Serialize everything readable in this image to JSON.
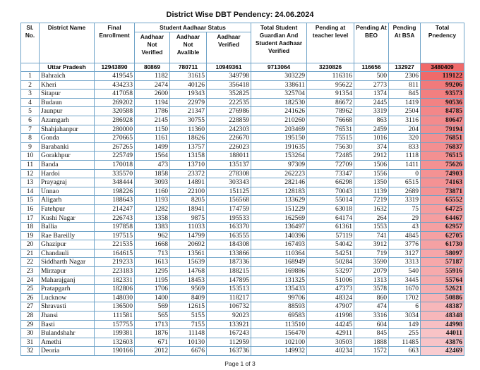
{
  "title": "District Wise DBT Pendency: 24.06.2024",
  "headers": {
    "sl": "Sl. No.",
    "district": "District Name",
    "enrollment": "Final Enrollment",
    "aadhaar_status": "Student Aadhaar Status",
    "not_verified": "Aadhaar Not Verified",
    "not_available": "Aadhaar Not Avalible",
    "verified": "Aadhaar Verified",
    "guardian_verified": "Total Student Guardian And Student Aadhaar Verified",
    "pending_teacher": "Pending at teacher level",
    "pending_beo": "Pending At BEO",
    "pending_bsa": "Pending At BSA",
    "total": "Total Pnedency"
  },
  "state_total": [
    "Uttar Pradesh",
    "12943890",
    "80869",
    "780711",
    "10949361",
    "9713064",
    "3230826",
    "116656",
    "132927",
    "3480409"
  ],
  "colors": {
    "border": "#6fa3c8",
    "total_high": "#f06a6a",
    "total_low": "#f9ccd0"
  },
  "rows": [
    [
      "1",
      "Bahraich",
      "419545",
      "1182",
      "31615",
      "349798",
      "303229",
      "116316",
      "500",
      "2306",
      "119122"
    ],
    [
      "2",
      "Kheri",
      "434233",
      "2474",
      "40126",
      "356418",
      "338611",
      "95622",
      "2773",
      "811",
      "99206"
    ],
    [
      "3",
      "Sitapur",
      "417058",
      "2600",
      "19343",
      "352825",
      "325704",
      "91354",
      "1374",
      "845",
      "93573"
    ],
    [
      "4",
      "Budaun",
      "269202",
      "1194",
      "22979",
      "222535",
      "182530",
      "86672",
      "2445",
      "1419",
      "90536"
    ],
    [
      "5",
      "Jaunpur",
      "320588",
      "1786",
      "21347",
      "276986",
      "241626",
      "78962",
      "3319",
      "2504",
      "84785"
    ],
    [
      "6",
      "Azamgarh",
      "286928",
      "2145",
      "30755",
      "228859",
      "210260",
      "76668",
      "863",
      "3116",
      "80647"
    ],
    [
      "7",
      "Shahjahanpur",
      "280000",
      "1150",
      "11360",
      "242303",
      "203469",
      "76531",
      "2459",
      "204",
      "79194"
    ],
    [
      "8",
      "Gonda",
      "270665",
      "1161",
      "18626",
      "226670",
      "195150",
      "75515",
      "1016",
      "320",
      "76851"
    ],
    [
      "9",
      "Barabanki",
      "267265",
      "1499",
      "13757",
      "226023",
      "191635",
      "75630",
      "374",
      "833",
      "76837"
    ],
    [
      "10",
      "Gorakhpur",
      "225749",
      "1564",
      "13158",
      "188011",
      "153264",
      "72485",
      "2912",
      "1118",
      "76515"
    ],
    [
      "11",
      "Banda",
      "170018",
      "473",
      "13710",
      "135137",
      "97309",
      "72709",
      "1506",
      "1411",
      "75626"
    ],
    [
      "12",
      "Hardoi",
      "335570",
      "1858",
      "23372",
      "278308",
      "262223",
      "73347",
      "1556",
      "0",
      "74903"
    ],
    [
      "13",
      "Prayagraj",
      "348444",
      "3093",
      "14891",
      "303343",
      "282146",
      "66298",
      "1350",
      "6515",
      "74163"
    ],
    [
      "14",
      "Unnao",
      "198226",
      "1160",
      "22100",
      "151125",
      "128183",
      "70043",
      "1139",
      "2689",
      "73871"
    ],
    [
      "15",
      "Aligarh",
      "188643",
      "1193",
      "8205",
      "156568",
      "133629",
      "55014",
      "7219",
      "3319",
      "65552"
    ],
    [
      "16",
      "Fatehpur",
      "214247",
      "1282",
      "18941",
      "174759",
      "151229",
      "63018",
      "1632",
      "75",
      "64725"
    ],
    [
      "17",
      "Kushi Nagar",
      "226743",
      "1358",
      "9875",
      "195533",
      "162569",
      "64174",
      "264",
      "29",
      "64467"
    ],
    [
      "18",
      "Ballia",
      "197858",
      "1383",
      "11033",
      "163370",
      "136497",
      "61361",
      "1553",
      "43",
      "62957"
    ],
    [
      "19",
      "Rae Bareilly",
      "197515",
      "962",
      "14799",
      "163555",
      "140396",
      "57119",
      "741",
      "4845",
      "62705"
    ],
    [
      "20",
      "Ghazipur",
      "221535",
      "1668",
      "20692",
      "184308",
      "167493",
      "54042",
      "3912",
      "3776",
      "61730"
    ],
    [
      "21",
      "Chandauli",
      "164615",
      "713",
      "13561",
      "133866",
      "110364",
      "54251",
      "719",
      "3127",
      "58097"
    ],
    [
      "22",
      "Siddharth Nagar",
      "219233",
      "1613",
      "15639",
      "187336",
      "168949",
      "50284",
      "3590",
      "3313",
      "57187"
    ],
    [
      "23",
      "Mirzapur",
      "223183",
      "1295",
      "14768",
      "188215",
      "169886",
      "53297",
      "2079",
      "540",
      "55916"
    ],
    [
      "24",
      "Maharajganj",
      "182331",
      "1195",
      "18453",
      "147895",
      "131325",
      "51006",
      "1313",
      "3445",
      "55764"
    ],
    [
      "25",
      "Pratapgarh",
      "182806",
      "1706",
      "9569",
      "153513",
      "135433",
      "47373",
      "3578",
      "1670",
      "52621"
    ],
    [
      "26",
      "Lucknow",
      "148030",
      "1400",
      "8409",
      "118217",
      "99706",
      "48324",
      "860",
      "1702",
      "50886"
    ],
    [
      "27",
      "Shravasti",
      "136500",
      "569",
      "12615",
      "106732",
      "88593",
      "47907",
      "474",
      "6",
      "48387"
    ],
    [
      "28",
      "Jhansi",
      "111581",
      "565",
      "5155",
      "92023",
      "69583",
      "41998",
      "3316",
      "3034",
      "48348"
    ],
    [
      "29",
      "Basti",
      "157755",
      "1713",
      "7155",
      "133921",
      "113510",
      "44245",
      "604",
      "149",
      "44998"
    ],
    [
      "30",
      "Bulandshahr",
      "199381",
      "1876",
      "11148",
      "167243",
      "156470",
      "42911",
      "845",
      "255",
      "44011"
    ],
    [
      "31",
      "Amethi",
      "132603",
      "671",
      "10130",
      "112959",
      "102100",
      "30503",
      "1888",
      "11485",
      "43876"
    ],
    [
      "32",
      "Deoria",
      "190166",
      "2012",
      "6676",
      "163736",
      "149932",
      "40234",
      "1572",
      "663",
      "42469"
    ]
  ],
  "footer": "Page 1 of 3"
}
